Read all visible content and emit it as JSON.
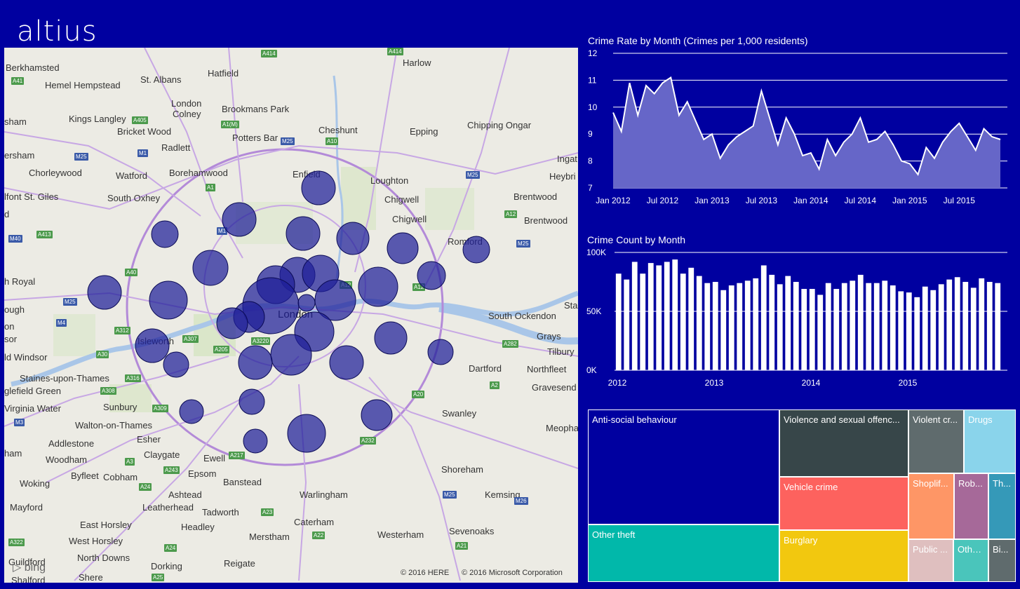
{
  "header": {
    "logo_text": "altius"
  },
  "map": {
    "places": [
      {
        "name": "Berkhamsted",
        "x": 2,
        "y": 21
      },
      {
        "name": "Hemel Hempstead",
        "x": 58,
        "y": 46
      },
      {
        "name": "St. Albans",
        "x": 194,
        "y": 38
      },
      {
        "name": "Hatfield",
        "x": 290,
        "y": 29
      },
      {
        "name": "Harlow",
        "x": 568,
        "y": 14
      },
      {
        "name": "London",
        "x": 238,
        "y": 72
      },
      {
        "name": "Colney",
        "x": 240,
        "y": 87
      },
      {
        "name": "Brookmans Park",
        "x": 310,
        "y": 80
      },
      {
        "name": "Kings Langley",
        "x": 92,
        "y": 94
      },
      {
        "name": "Bricket Wood",
        "x": 161,
        "y": 112
      },
      {
        "name": "Cheshunt",
        "x": 448,
        "y": 110
      },
      {
        "name": "Epping",
        "x": 578,
        "y": 112
      },
      {
        "name": "Chipping Ongar",
        "x": 660,
        "y": 103
      },
      {
        "name": "Potters Bar",
        "x": 325,
        "y": 121
      },
      {
        "name": "Radlett",
        "x": 224,
        "y": 135
      },
      {
        "name": "Chorleywood",
        "x": 35,
        "y": 171
      },
      {
        "name": "Watford",
        "x": 159,
        "y": 175
      },
      {
        "name": "Borehamwood",
        "x": 235,
        "y": 171
      },
      {
        "name": "Enfield",
        "x": 411,
        "y": 173
      },
      {
        "name": "Loughton",
        "x": 522,
        "y": 182
      },
      {
        "name": "Ingat",
        "x": 788,
        "y": 151
      },
      {
        "name": "Heybri",
        "x": 777,
        "y": 176
      },
      {
        "name": "Chigwell",
        "x": 542,
        "y": 209
      },
      {
        "name": "Brentwood",
        "x": 726,
        "y": 205
      },
      {
        "name": "South Oxhey",
        "x": 147,
        "y": 207
      },
      {
        "name": "Chigwell",
        "x": 553,
        "y": 237
      },
      {
        "name": "Brentwood",
        "x": 741,
        "y": 239
      },
      {
        "name": "Romford",
        "x": 632,
        "y": 269
      },
      {
        "name": "South Ockendon",
        "x": 690,
        "y": 375
      },
      {
        "name": "Grays",
        "x": 759,
        "y": 404
      },
      {
        "name": "Tilbury",
        "x": 774,
        "y": 426
      },
      {
        "name": "Dartford",
        "x": 662,
        "y": 450
      },
      {
        "name": "Northfleet",
        "x": 745,
        "y": 451
      },
      {
        "name": "Gravesend",
        "x": 752,
        "y": 477
      },
      {
        "name": "Swanley",
        "x": 624,
        "y": 514
      },
      {
        "name": "Meopha",
        "x": 772,
        "y": 535
      },
      {
        "name": "Isleworth",
        "x": 190,
        "y": 411
      },
      {
        "name": "Staines-upon-Thames",
        "x": 22,
        "y": 464
      },
      {
        "name": "Sunbury",
        "x": 141,
        "y": 505
      },
      {
        "name": "Walton-on-Thames",
        "x": 101,
        "y": 531
      },
      {
        "name": "Addlestone",
        "x": 63,
        "y": 557
      },
      {
        "name": "Esher",
        "x": 189,
        "y": 551
      },
      {
        "name": "Woodham",
        "x": 59,
        "y": 580
      },
      {
        "name": "Claygate",
        "x": 199,
        "y": 573
      },
      {
        "name": "Ewell",
        "x": 284,
        "y": 578
      },
      {
        "name": "Byfleet",
        "x": 95,
        "y": 603
      },
      {
        "name": "Cobham",
        "x": 141,
        "y": 605
      },
      {
        "name": "Epsom",
        "x": 262,
        "y": 600
      },
      {
        "name": "Banstead",
        "x": 312,
        "y": 612
      },
      {
        "name": "Shoreham",
        "x": 623,
        "y": 594
      },
      {
        "name": "Woking",
        "x": 22,
        "y": 614
      },
      {
        "name": "Ashtead",
        "x": 234,
        "y": 630
      },
      {
        "name": "Warlingham",
        "x": 421,
        "y": 630
      },
      {
        "name": "Kemsing",
        "x": 685,
        "y": 630
      },
      {
        "name": "Leatherhead",
        "x": 197,
        "y": 648
      },
      {
        "name": "Tadworth",
        "x": 282,
        "y": 655
      },
      {
        "name": "Mayford",
        "x": 8,
        "y": 648
      },
      {
        "name": "Caterham",
        "x": 413,
        "y": 669
      },
      {
        "name": "Headley",
        "x": 252,
        "y": 676
      },
      {
        "name": "East Horsley",
        "x": 108,
        "y": 673
      },
      {
        "name": "Sevenoaks",
        "x": 634,
        "y": 682
      },
      {
        "name": "Merstham",
        "x": 349,
        "y": 690
      },
      {
        "name": "Westerham",
        "x": 532,
        "y": 687
      },
      {
        "name": "West Horsley",
        "x": 92,
        "y": 696
      },
      {
        "name": "North Downs",
        "x": 104,
        "y": 720
      },
      {
        "name": "Dorking",
        "x": 209,
        "y": 732
      },
      {
        "name": "Reigate",
        "x": 313,
        "y": 728
      },
      {
        "name": "Guildford",
        "x": 6,
        "y": 726
      },
      {
        "name": "Shalford",
        "x": 10,
        "y": 752
      },
      {
        "name": "Shere",
        "x": 106,
        "y": 748
      },
      {
        "name": "sham",
        "x": 0,
        "y": 98
      },
      {
        "name": "ersham",
        "x": 0,
        "y": 146
      },
      {
        "name": "lfont St. Giles",
        "x": 0,
        "y": 205
      },
      {
        "name": "d",
        "x": 0,
        "y": 230
      },
      {
        "name": "h Royal",
        "x": 0,
        "y": 326
      },
      {
        "name": "ough",
        "x": 0,
        "y": 366
      },
      {
        "name": "on",
        "x": 0,
        "y": 390
      },
      {
        "name": "sor",
        "x": 0,
        "y": 408
      },
      {
        "name": "ld Windsor",
        "x": 0,
        "y": 434
      },
      {
        "name": "glefield Green",
        "x": 0,
        "y": 482
      },
      {
        "name": "Virginia Water",
        "x": 0,
        "y": 507
      },
      {
        "name": "ham",
        "x": 0,
        "y": 571
      },
      {
        "name": "Sta",
        "x": 798,
        "y": 360
      }
    ],
    "london_label": "London",
    "roads": [
      {
        "label": "A414",
        "x": 366,
        "y": 3
      },
      {
        "label": "A414",
        "x": 546,
        "y": 0
      },
      {
        "label": "A41",
        "x": 10,
        "y": 42
      },
      {
        "label": "A405",
        "x": 182,
        "y": 98
      },
      {
        "label": "A1(M)",
        "x": 309,
        "y": 104
      },
      {
        "label": "M25",
        "x": 394,
        "y": 128,
        "type": "blue"
      },
      {
        "label": "A10",
        "x": 458,
        "y": 128
      },
      {
        "label": "M25",
        "x": 100,
        "y": 150,
        "type": "blue"
      },
      {
        "label": "M1",
        "x": 190,
        "y": 145,
        "type": "blue"
      },
      {
        "label": "M25",
        "x": 658,
        "y": 176,
        "type": "blue"
      },
      {
        "label": "A1",
        "x": 287,
        "y": 194
      },
      {
        "label": "A12",
        "x": 713,
        "y": 232
      },
      {
        "label": "M40",
        "x": 6,
        "y": 267,
        "type": "blue"
      },
      {
        "label": "A413",
        "x": 46,
        "y": 261
      },
      {
        "label": "M25",
        "x": 730,
        "y": 274,
        "type": "blue"
      },
      {
        "label": "A40",
        "x": 172,
        "y": 315
      },
      {
        "label": "A12",
        "x": 582,
        "y": 336
      },
      {
        "label": "M25",
        "x": 84,
        "y": 357,
        "type": "blue"
      },
      {
        "label": "M4",
        "x": 74,
        "y": 387,
        "type": "blue"
      },
      {
        "label": "A312",
        "x": 157,
        "y": 398
      },
      {
        "label": "A307",
        "x": 254,
        "y": 410
      },
      {
        "label": "A205",
        "x": 298,
        "y": 425
      },
      {
        "label": "A3220",
        "x": 352,
        "y": 413
      },
      {
        "label": "A30",
        "x": 131,
        "y": 432
      },
      {
        "label": "A316",
        "x": 172,
        "y": 466
      },
      {
        "label": "A282",
        "x": 710,
        "y": 417
      },
      {
        "label": "A2",
        "x": 692,
        "y": 476
      },
      {
        "label": "A308",
        "x": 137,
        "y": 484
      },
      {
        "label": "A20",
        "x": 581,
        "y": 489
      },
      {
        "label": "A309",
        "x": 211,
        "y": 509
      },
      {
        "label": "M3",
        "x": 14,
        "y": 529,
        "type": "blue"
      },
      {
        "label": "A232",
        "x": 507,
        "y": 555
      },
      {
        "label": "A217",
        "x": 320,
        "y": 576
      },
      {
        "label": "A3",
        "x": 172,
        "y": 585
      },
      {
        "label": "A243",
        "x": 227,
        "y": 597
      },
      {
        "label": "A24",
        "x": 192,
        "y": 621
      },
      {
        "label": "M25",
        "x": 625,
        "y": 632,
        "type": "blue"
      },
      {
        "label": "M26",
        "x": 727,
        "y": 641,
        "type": "blue"
      },
      {
        "label": "A23",
        "x": 366,
        "y": 657
      },
      {
        "label": "A22",
        "x": 439,
        "y": 690
      },
      {
        "label": "A21",
        "x": 643,
        "y": 705
      },
      {
        "label": "A322",
        "x": 6,
        "y": 700
      },
      {
        "label": "A24",
        "x": 228,
        "y": 708
      },
      {
        "label": "A25",
        "x": 210,
        "y": 750
      },
      {
        "label": "A12",
        "x": 478,
        "y": 333
      },
      {
        "label": "M1",
        "x": 303,
        "y": 256,
        "type": "blue"
      }
    ],
    "bubbles": [
      {
        "x": 448,
        "y": 200,
        "r": 24
      },
      {
        "x": 335,
        "y": 245,
        "r": 24
      },
      {
        "x": 229,
        "y": 266,
        "r": 19
      },
      {
        "x": 426,
        "y": 265,
        "r": 24
      },
      {
        "x": 497,
        "y": 272,
        "r": 23
      },
      {
        "x": 568,
        "y": 286,
        "r": 22
      },
      {
        "x": 673,
        "y": 288,
        "r": 19
      },
      {
        "x": 294,
        "y": 314,
        "r": 25
      },
      {
        "x": 609,
        "y": 325,
        "r": 20
      },
      {
        "x": 143,
        "y": 349,
        "r": 24
      },
      {
        "x": 234,
        "y": 360,
        "r": 27
      },
      {
        "x": 418,
        "y": 324,
        "r": 25
      },
      {
        "x": 451,
        "y": 322,
        "r": 26
      },
      {
        "x": 387,
        "y": 338,
        "r": 27
      },
      {
        "x": 533,
        "y": 341,
        "r": 28
      },
      {
        "x": 380,
        "y": 368,
        "r": 40
      },
      {
        "x": 472,
        "y": 360,
        "r": 29
      },
      {
        "x": 431,
        "y": 364,
        "r": 12
      },
      {
        "x": 349,
        "y": 384,
        "r": 22
      },
      {
        "x": 325,
        "y": 393,
        "r": 22
      },
      {
        "x": 442,
        "y": 405,
        "r": 28
      },
      {
        "x": 211,
        "y": 425,
        "r": 24
      },
      {
        "x": 551,
        "y": 414,
        "r": 23
      },
      {
        "x": 622,
        "y": 434,
        "r": 18
      },
      {
        "x": 409,
        "y": 438,
        "r": 29
      },
      {
        "x": 358,
        "y": 449,
        "r": 24
      },
      {
        "x": 245,
        "y": 452,
        "r": 18
      },
      {
        "x": 488,
        "y": 449,
        "r": 24
      },
      {
        "x": 353,
        "y": 505,
        "r": 18
      },
      {
        "x": 267,
        "y": 519,
        "r": 17
      },
      {
        "x": 531,
        "y": 524,
        "r": 22
      },
      {
        "x": 431,
        "y": 550,
        "r": 27
      },
      {
        "x": 358,
        "y": 561,
        "r": 17
      }
    ],
    "attribution_here": "© 2016 HERE",
    "attribution_ms": "© 2016 Microsoft Corporation",
    "bing_label": "bing",
    "colors": {
      "bubble": "#1f1f99",
      "water": "#a9c6e8",
      "road": "#b38ad8",
      "park": "#cfe3b8"
    }
  },
  "crime_rate": {
    "title": "Crime Rate by Month (Crimes per 1,000 residents)",
    "chart_data": {
      "type": "area",
      "title": "Crime Rate by Month (Crimes per 1,000 residents)",
      "ylim": [
        7,
        12
      ],
      "yticks": [
        7,
        8,
        9,
        10,
        11,
        12
      ],
      "xticks": [
        "Jan 2012",
        "Jul 2012",
        "Jan 2013",
        "Jul 2013",
        "Jan 2014",
        "Jul 2014",
        "Jan 2015",
        "Jul 2015"
      ],
      "x": [
        "2012-01",
        "2012-02",
        "2012-03",
        "2012-04",
        "2012-05",
        "2012-06",
        "2012-07",
        "2012-08",
        "2012-09",
        "2012-10",
        "2012-11",
        "2012-12",
        "2013-01",
        "2013-02",
        "2013-03",
        "2013-04",
        "2013-05",
        "2013-06",
        "2013-07",
        "2013-08",
        "2013-09",
        "2013-10",
        "2013-11",
        "2013-12",
        "2014-01",
        "2014-02",
        "2014-03",
        "2014-04",
        "2014-05",
        "2014-06",
        "2014-07",
        "2014-08",
        "2014-09",
        "2014-10",
        "2014-11",
        "2014-12",
        "2015-01",
        "2015-02",
        "2015-03",
        "2015-04",
        "2015-05",
        "2015-06",
        "2015-07",
        "2015-08",
        "2015-09",
        "2015-10",
        "2015-11",
        "2015-12"
      ],
      "values": [
        9.8,
        9.1,
        10.9,
        9.7,
        10.8,
        10.5,
        10.9,
        11.1,
        9.7,
        10.2,
        9.5,
        8.8,
        9.0,
        8.1,
        8.6,
        8.9,
        9.1,
        9.3,
        10.6,
        9.6,
        8.6,
        9.6,
        9.0,
        8.2,
        8.3,
        7.7,
        8.8,
        8.2,
        8.7,
        9.0,
        9.6,
        8.7,
        8.8,
        9.1,
        8.6,
        8.0,
        7.9,
        7.5,
        8.5,
        8.1,
        8.7,
        9.1,
        9.4,
        8.9,
        8.4,
        9.2,
        8.9,
        8.8
      ],
      "grid": true
    }
  },
  "crime_count": {
    "title": "Crime Count by Month",
    "chart_data": {
      "type": "bar",
      "title": "Crime Count by Month",
      "ylim": [
        0,
        100000
      ],
      "yticks": [
        {
          "v": 0,
          "label": "0K"
        },
        {
          "v": 50000,
          "label": "50K"
        },
        {
          "v": 100000,
          "label": "100K"
        }
      ],
      "xticks": [
        "2012",
        "2013",
        "2014",
        "2015"
      ],
      "categories": [
        "2012-01",
        "2012-02",
        "2012-03",
        "2012-04",
        "2012-05",
        "2012-06",
        "2012-07",
        "2012-08",
        "2012-09",
        "2012-10",
        "2012-11",
        "2012-12",
        "2013-01",
        "2013-02",
        "2013-03",
        "2013-04",
        "2013-05",
        "2013-06",
        "2013-07",
        "2013-08",
        "2013-09",
        "2013-10",
        "2013-11",
        "2013-12",
        "2014-01",
        "2014-02",
        "2014-03",
        "2014-04",
        "2014-05",
        "2014-06",
        "2014-07",
        "2014-08",
        "2014-09",
        "2014-10",
        "2014-11",
        "2014-12",
        "2015-01",
        "2015-02",
        "2015-03",
        "2015-04",
        "2015-05",
        "2015-06",
        "2015-07",
        "2015-08",
        "2015-09",
        "2015-10",
        "2015-11",
        "2015-12"
      ],
      "values": [
        82000,
        77000,
        92000,
        82000,
        91000,
        89000,
        92000,
        94000,
        82000,
        87000,
        80000,
        74000,
        75000,
        68000,
        72000,
        74000,
        76000,
        78000,
        89000,
        81000,
        73000,
        80000,
        75000,
        69000,
        69000,
        64000,
        74000,
        69000,
        74000,
        76000,
        81000,
        74000,
        74000,
        76000,
        72000,
        67000,
        66000,
        62000,
        71000,
        68000,
        73000,
        77000,
        79000,
        75000,
        70000,
        78000,
        75000,
        74000
      ],
      "grid": true
    }
  },
  "treemap": {
    "chart_data": {
      "type": "treemap",
      "tiles": [
        {
          "label": "Anti-social behaviour",
          "color": "#0000A0"
        },
        {
          "label": "Other theft",
          "color": "#01b8aa"
        },
        {
          "label": "Violence and sexual offenc...",
          "color": "#374649"
        },
        {
          "label": "Vehicle crime",
          "color": "#fd625e"
        },
        {
          "label": "Burglary",
          "color": "#f2c80f"
        },
        {
          "label": "Violent cr...",
          "color": "#5f6b6d"
        },
        {
          "label": "Drugs",
          "color": "#8ad4eb"
        },
        {
          "label": "Shoplif...",
          "color": "#fe9666"
        },
        {
          "label": "Rob...",
          "color": "#a66999"
        },
        {
          "label": "Th...",
          "color": "#3599b8"
        },
        {
          "label": "Public ...",
          "color": "#dfbfbf"
        },
        {
          "label": "Othe...",
          "color": "#4ac5bb"
        },
        {
          "label": "Bi...",
          "color": "#5f6b6d"
        }
      ]
    }
  }
}
